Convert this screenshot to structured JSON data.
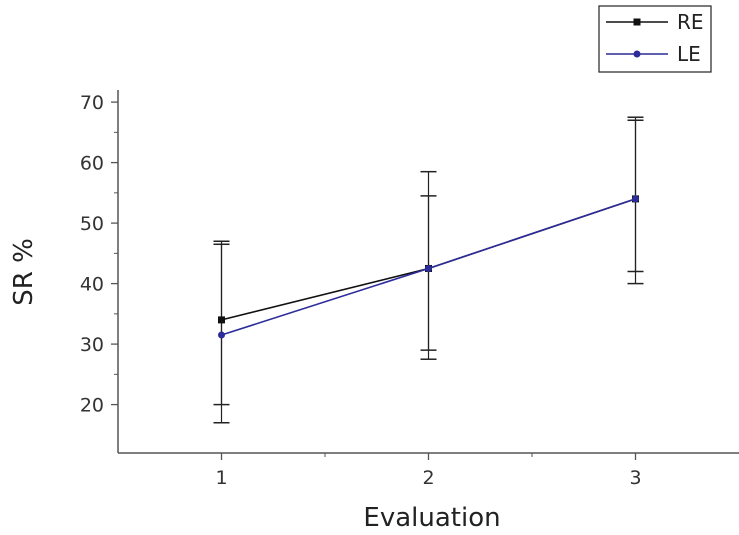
{
  "chart_data": {
    "type": "line",
    "title": "",
    "xlabel": "Evaluation",
    "ylabel": "SR %",
    "x": [
      1,
      2,
      3
    ],
    "xlim": [
      0.5,
      3.5
    ],
    "ylim": [
      12,
      72
    ],
    "xticks": [
      "1",
      "2",
      "3"
    ],
    "yticks": [
      "20",
      "30",
      "40",
      "50",
      "60",
      "70"
    ],
    "grid": false,
    "legend": "top-right",
    "series": [
      {
        "name": "RE",
        "color": "#111111",
        "marker": "square",
        "values": [
          34,
          42.5,
          54
        ],
        "error_low": [
          20,
          29,
          42
        ],
        "error_high": [
          47,
          58.5,
          67.5
        ]
      },
      {
        "name": "LE",
        "color": "#2c2c9a",
        "marker": "circle",
        "values": [
          31.5,
          42.5,
          54
        ],
        "error_low": [
          17,
          27.5,
          40
        ],
        "error_high": [
          46.5,
          54.5,
          67
        ]
      }
    ]
  }
}
